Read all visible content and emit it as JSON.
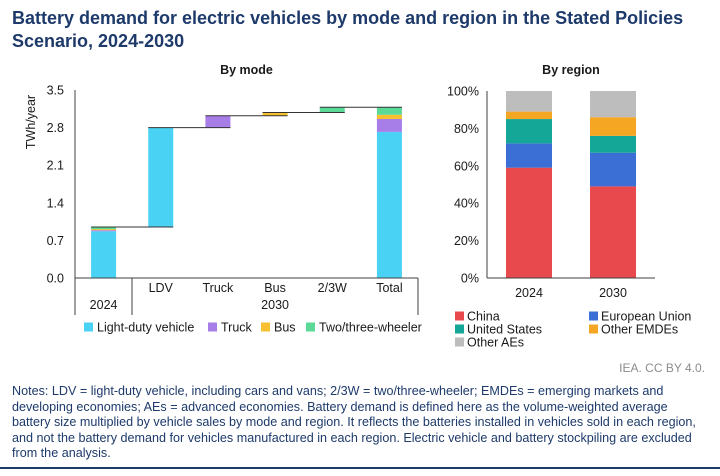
{
  "title": "Battery demand for electric vehicles by mode and region in the Stated Policies Scenario, 2024-2030",
  "chart_data": [
    {
      "type": "bar",
      "stacked": true,
      "waterfall": true,
      "title": "By mode",
      "ylabel": "TWh/year",
      "ylim": [
        0,
        3.5
      ],
      "yticks": [
        "0.0",
        "0.7",
        "1.4",
        "2.1",
        "2.8",
        "3.5"
      ],
      "groups": [
        {
          "label": "2024",
          "categories": [
            ""
          ]
        },
        {
          "label": "2030",
          "categories": [
            "LDV",
            "Truck",
            "Bus",
            "2/3W",
            "Total"
          ]
        }
      ],
      "series": [
        {
          "name": "Light-duty vehicle",
          "color": "#4ad2f4",
          "values": [
            0.87,
            1.85,
            0,
            0,
            0,
            2.72
          ]
        },
        {
          "name": "Truck",
          "color": "#a77ee7",
          "values": [
            0.02,
            0,
            0.22,
            0,
            0,
            0.24
          ]
        },
        {
          "name": "Bus",
          "color": "#f6c02f",
          "values": [
            0.02,
            0,
            0,
            0.06,
            0,
            0.08
          ]
        },
        {
          "name": "Two/three-wheeler",
          "color": "#5ad997",
          "values": [
            0.04,
            0,
            0,
            0,
            0.1,
            0.14
          ]
        }
      ],
      "grid": false,
      "legend": "bottom"
    },
    {
      "type": "bar",
      "stacked": true,
      "title": "By region",
      "categories": [
        "2024",
        "2030"
      ],
      "ylim": [
        0,
        100
      ],
      "yticks": [
        "0%",
        "20%",
        "40%",
        "60%",
        "80%",
        "100%"
      ],
      "series": [
        {
          "name": "China",
          "color": "#e8494c",
          "values": [
            59,
            49
          ]
        },
        {
          "name": "European Union",
          "color": "#3b6fd6",
          "values": [
            13,
            18
          ]
        },
        {
          "name": "United States",
          "color": "#14a697",
          "values": [
            13,
            9
          ]
        },
        {
          "name": "Other EMDEs",
          "color": "#f5a623",
          "values": [
            4,
            10
          ]
        },
        {
          "name": "Other AEs",
          "color": "#bdbdbd",
          "values": [
            11,
            14
          ]
        }
      ],
      "grid": false,
      "legend": "bottom"
    }
  ],
  "credit": "IEA. CC BY 4.0.",
  "notes_lines": [
    "Notes: LDV = light-duty vehicle, including cars and vans; 2/3W = two/three-wheeler; EMDEs = emerging markets and",
    "developing economies; AEs = advanced economies. Battery demand is defined here as the volume-weighted average",
    "battery size multiplied by vehicle sales by mode and region. It reflects the batteries installed in vehicles sold in each region,",
    "and not the battery demand for vehicles manufactured in each region. Electric vehicle and battery stockpiling are excluded",
    "from the analysis."
  ],
  "colors": {
    "title": "#1d3a6b",
    "notes": "#1d3a6b",
    "credit": "#8c8c8c",
    "axis": "#404040",
    "connector": "#333333"
  }
}
